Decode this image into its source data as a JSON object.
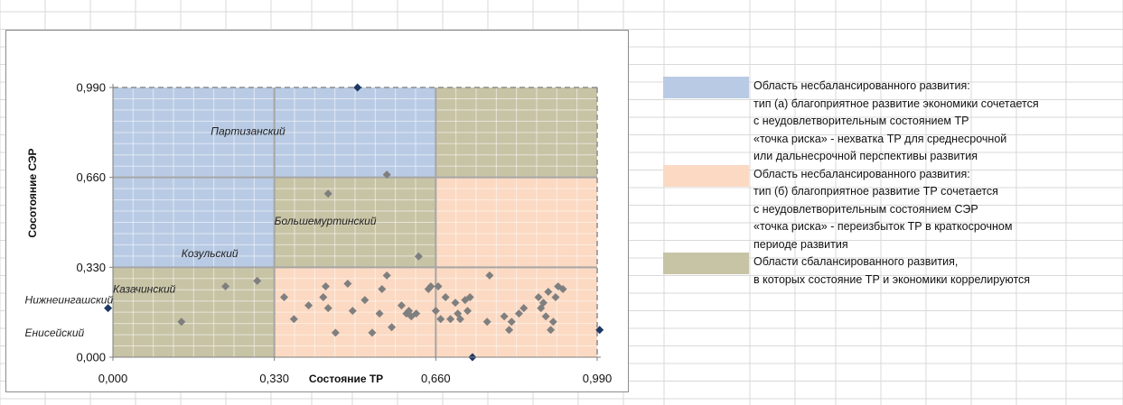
{
  "colors": {
    "blue_region": "#b9cbe4",
    "peach_region": "#fbd9c2",
    "olive_region": "#c7c3a5",
    "point_gray": "#7f7f7f",
    "point_navy": "#1f3864",
    "grid": "#d9d9d9"
  },
  "chart_data": {
    "type": "scatter",
    "xlabel": "Состояние ТР",
    "ylabel": "Сосотояние СЭР",
    "xlim": [
      0,
      0.99
    ],
    "ylim": [
      0,
      0.99
    ],
    "x_ticks": [
      "0,000",
      "0,330",
      "0,660",
      "0,990"
    ],
    "y_ticks": [
      "0,000",
      "0,330",
      "0,660",
      "0,990"
    ],
    "regions": [
      {
        "type": "blue",
        "x": [
          0,
          0.33
        ],
        "y": [
          0.33,
          0.66
        ]
      },
      {
        "type": "blue",
        "x": [
          0,
          0.33
        ],
        "y": [
          0.66,
          0.99
        ]
      },
      {
        "type": "blue",
        "x": [
          0.33,
          0.66
        ],
        "y": [
          0.66,
          0.99
        ]
      },
      {
        "type": "olive",
        "x": [
          0.66,
          0.99
        ],
        "y": [
          0.66,
          0.99
        ]
      },
      {
        "type": "olive",
        "x": [
          0.33,
          0.66
        ],
        "y": [
          0.33,
          0.66
        ]
      },
      {
        "type": "olive",
        "x": [
          0,
          0.33
        ],
        "y": [
          0,
          0.33
        ]
      },
      {
        "type": "peach",
        "x": [
          0.66,
          0.99
        ],
        "y": [
          0.33,
          0.66
        ]
      },
      {
        "type": "peach",
        "x": [
          0.33,
          0.66
        ],
        "y": [
          0,
          0.33
        ]
      },
      {
        "type": "peach",
        "x": [
          0.66,
          0.99
        ],
        "y": [
          0,
          0.33
        ]
      }
    ],
    "points_highlight": [
      {
        "x": 0.5,
        "y": 0.99
      },
      {
        "x": 0.735,
        "y": 0.0
      },
      {
        "x": 0.995,
        "y": 0.1
      },
      {
        "x": -0.01,
        "y": 0.18
      }
    ],
    "points": [
      {
        "x": 0.14,
        "y": 0.13
      },
      {
        "x": 0.23,
        "y": 0.26
      },
      {
        "x": 0.295,
        "y": 0.28
      },
      {
        "x": 0.44,
        "y": 0.6
      },
      {
        "x": 0.56,
        "y": 0.67
      },
      {
        "x": 0.625,
        "y": 0.37
      },
      {
        "x": 0.35,
        "y": 0.22
      },
      {
        "x": 0.37,
        "y": 0.14
      },
      {
        "x": 0.4,
        "y": 0.19
      },
      {
        "x": 0.43,
        "y": 0.22
      },
      {
        "x": 0.435,
        "y": 0.26
      },
      {
        "x": 0.44,
        "y": 0.18
      },
      {
        "x": 0.455,
        "y": 0.09
      },
      {
        "x": 0.48,
        "y": 0.27
      },
      {
        "x": 0.49,
        "y": 0.17
      },
      {
        "x": 0.515,
        "y": 0.21
      },
      {
        "x": 0.53,
        "y": 0.09
      },
      {
        "x": 0.545,
        "y": 0.16
      },
      {
        "x": 0.55,
        "y": 0.25
      },
      {
        "x": 0.56,
        "y": 0.3
      },
      {
        "x": 0.57,
        "y": 0.11
      },
      {
        "x": 0.59,
        "y": 0.19
      },
      {
        "x": 0.6,
        "y": 0.16
      },
      {
        "x": 0.605,
        "y": 0.17
      },
      {
        "x": 0.61,
        "y": 0.15
      },
      {
        "x": 0.62,
        "y": 0.16
      },
      {
        "x": 0.645,
        "y": 0.25
      },
      {
        "x": 0.65,
        "y": 0.26
      },
      {
        "x": 0.66,
        "y": 0.17
      },
      {
        "x": 0.665,
        "y": 0.26
      },
      {
        "x": 0.67,
        "y": 0.14
      },
      {
        "x": 0.68,
        "y": 0.22
      },
      {
        "x": 0.69,
        "y": 0.14
      },
      {
        "x": 0.7,
        "y": 0.2
      },
      {
        "x": 0.705,
        "y": 0.16
      },
      {
        "x": 0.71,
        "y": 0.14
      },
      {
        "x": 0.72,
        "y": 0.21
      },
      {
        "x": 0.725,
        "y": 0.17
      },
      {
        "x": 0.73,
        "y": 0.22
      },
      {
        "x": 0.765,
        "y": 0.13
      },
      {
        "x": 0.77,
        "y": 0.3
      },
      {
        "x": 0.8,
        "y": 0.15
      },
      {
        "x": 0.81,
        "y": 0.1
      },
      {
        "x": 0.815,
        "y": 0.13
      },
      {
        "x": 0.83,
        "y": 0.16
      },
      {
        "x": 0.84,
        "y": 0.18
      },
      {
        "x": 0.87,
        "y": 0.22
      },
      {
        "x": 0.875,
        "y": 0.18
      },
      {
        "x": 0.88,
        "y": 0.2
      },
      {
        "x": 0.885,
        "y": 0.15
      },
      {
        "x": 0.89,
        "y": 0.24
      },
      {
        "x": 0.895,
        "y": 0.1
      },
      {
        "x": 0.9,
        "y": 0.13
      },
      {
        "x": 0.905,
        "y": 0.22
      },
      {
        "x": 0.91,
        "y": 0.26
      },
      {
        "x": 0.92,
        "y": 0.25
      }
    ],
    "annotations": [
      {
        "text": "Партизанский",
        "x": 0.2,
        "y": 0.83
      },
      {
        "text": "Большемуртинский",
        "x": 0.33,
        "y": 0.5
      },
      {
        "text": "Козульский",
        "x": 0.14,
        "y": 0.38
      },
      {
        "text": "Казачинский",
        "x": 0.0,
        "y": 0.25
      },
      {
        "text": "Нижнеингашский",
        "x": -0.18,
        "y": 0.21
      },
      {
        "text": "Енисейский",
        "x": -0.18,
        "y": 0.09
      }
    ]
  },
  "legend": [
    {
      "color": "blue_region",
      "lines": [
        "Область несбалансированного развития:",
        "тип (а) благоприятное развитие экономики сочетается",
        "с неудовлетворительным состоянием ТР",
        "«точка риска» - нехватка ТР для среднесрочной",
        " или дальнесрочной перспективы развития"
      ]
    },
    {
      "color": "peach_region",
      "lines": [
        "Область несбалансированного развития:",
        "тип (б) благоприятное развитие ТР сочетается",
        "с неудовлетворительным состоянием СЭР",
        "«точка риска» - переизбыток ТР в краткосрочном",
        "периоде развития"
      ]
    },
    {
      "color": "olive_region",
      "lines": [
        "Области сбалансированного развития,",
        "в которых состояние ТР и экономики коррелируются"
      ]
    }
  ]
}
